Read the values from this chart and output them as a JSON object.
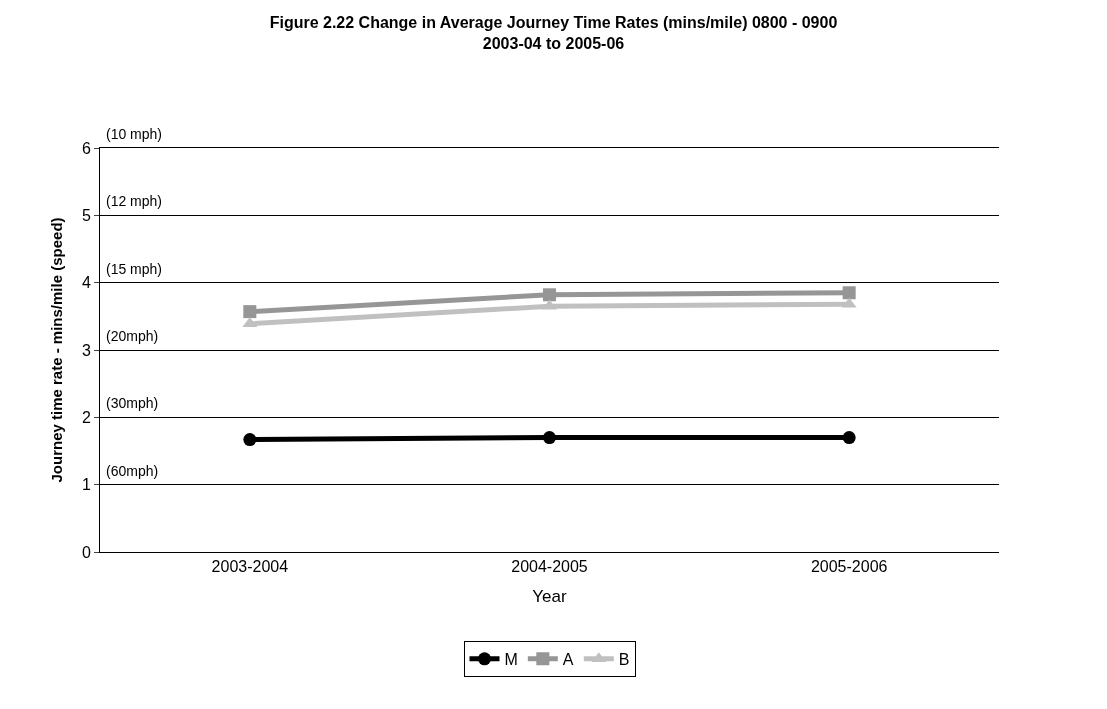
{
  "chart_data": {
    "type": "line",
    "title": "Figure 2.22 Change in Average Journey Time Rates (mins/mile) 0800 - 0900\n2003-04 to 2005-06",
    "xlabel": "Year",
    "ylabel": "Journey time rate - mins/mile (speed)",
    "categories": [
      "2003-2004",
      "2004-2005",
      "2005-2006"
    ],
    "series": [
      {
        "name": "M",
        "color": "#000000",
        "marker": "circle",
        "values": [
          1.67,
          1.7,
          1.7
        ]
      },
      {
        "name": "A",
        "color": "#969696",
        "marker": "square",
        "values": [
          3.57,
          3.82,
          3.85
        ]
      },
      {
        "name": "B",
        "color": "#c0c0c0",
        "marker": "triangle",
        "values": [
          3.39,
          3.65,
          3.68
        ]
      }
    ],
    "ylim": [
      0,
      6
    ],
    "yticks": [
      0,
      1,
      2,
      3,
      4,
      5,
      6
    ],
    "grid": "y",
    "legend": "bottom",
    "line_style": "solid",
    "annotations": [
      "(10 mph)",
      "(12 mph)",
      "(15 mph)",
      "(20mph)",
      "(30mph)",
      "(60mph)"
    ]
  }
}
